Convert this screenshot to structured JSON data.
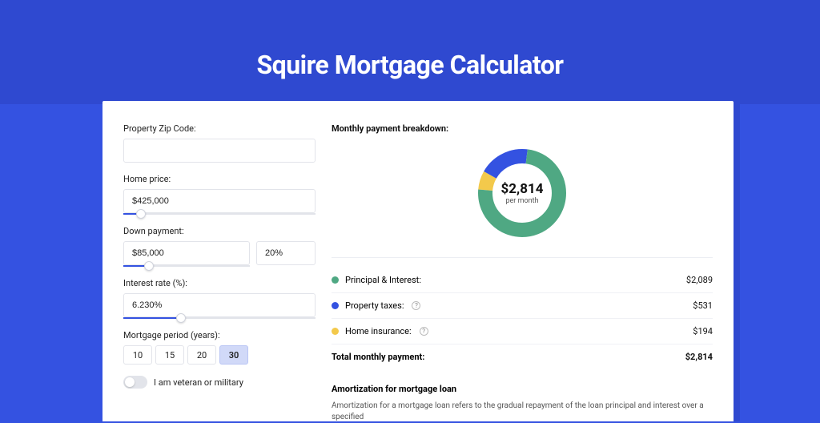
{
  "page": {
    "title": "Squire Mortgage Calculator",
    "background_color": "#3452e1",
    "shadow_color": "#2f49d0",
    "card_background": "#ffffff"
  },
  "form": {
    "zip": {
      "label": "Property Zip Code:",
      "value": ""
    },
    "home_price": {
      "label": "Home price:",
      "value": "$425,000",
      "slider_percent": 9
    },
    "down_payment": {
      "label": "Down payment:",
      "amount": "$85,000",
      "percent": "20%",
      "slider_percent": 20
    },
    "interest_rate": {
      "label": "Interest rate (%):",
      "value": "6.230%",
      "slider_percent": 30
    },
    "mortgage_period": {
      "label": "Mortgage period (years):",
      "options": [
        "10",
        "15",
        "20",
        "30"
      ],
      "selected": "30"
    },
    "veteran": {
      "label": "I am veteran or military",
      "checked": false
    }
  },
  "breakdown": {
    "title": "Monthly payment breakdown:",
    "donut": {
      "center_amount": "$2,814",
      "center_sub": "per month",
      "segments": [
        {
          "label": "Principal & Interest:",
          "value": "$2,089",
          "color": "#4fa883",
          "share": 0.742,
          "has_info": false
        },
        {
          "label": "Property taxes:",
          "value": "$531",
          "color": "#3452e1",
          "share": 0.189,
          "has_info": true
        },
        {
          "label": "Home insurance:",
          "value": "$194",
          "color": "#f3c94b",
          "share": 0.069,
          "has_info": true
        }
      ],
      "stroke_width": 18,
      "radius": 46
    },
    "total": {
      "label": "Total monthly payment:",
      "value": "$2,814"
    }
  },
  "amortization": {
    "title": "Amortization for mortgage loan",
    "text": "Amortization for a mortgage loan refers to the gradual repayment of the loan principal and interest over a specified"
  }
}
